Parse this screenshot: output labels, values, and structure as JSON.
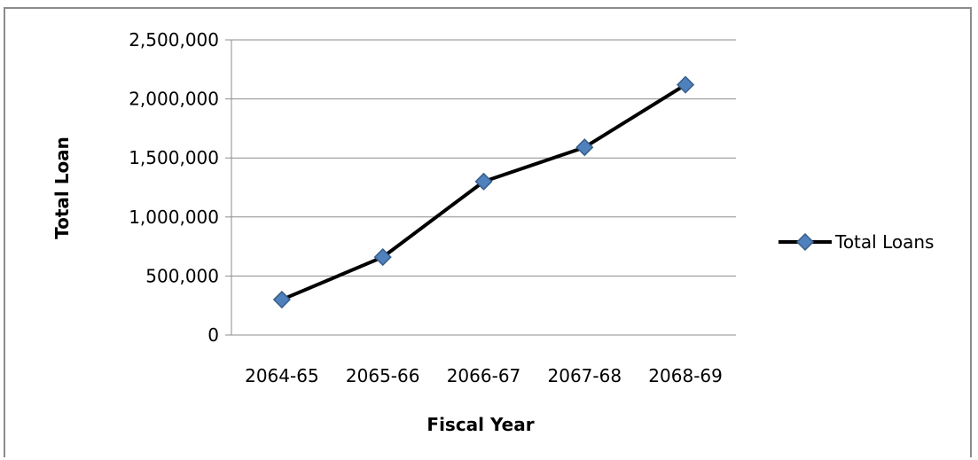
{
  "chart_data": {
    "type": "line",
    "title": "",
    "xlabel": "Fiscal Year",
    "ylabel": "Total Loan",
    "categories": [
      "2064-65",
      "2065-66",
      "2066-67",
      "2067-68",
      "2068-69"
    ],
    "series": [
      {
        "name": "Total Loans",
        "values": [
          300000,
          660000,
          1300000,
          1590000,
          2120000
        ],
        "color": "#000000",
        "marker_color": "#4f81bd",
        "marker": "diamond"
      }
    ],
    "ylim": [
      0,
      2500000
    ],
    "yticks": [
      0,
      500000,
      1000000,
      1500000,
      2000000,
      2500000
    ],
    "ytick_labels": [
      "0",
      "500,000",
      "1,000,000",
      "1,500,000",
      "2,000,000",
      "2,500,000"
    ],
    "grid": "horizontal",
    "legend_position": "right"
  }
}
